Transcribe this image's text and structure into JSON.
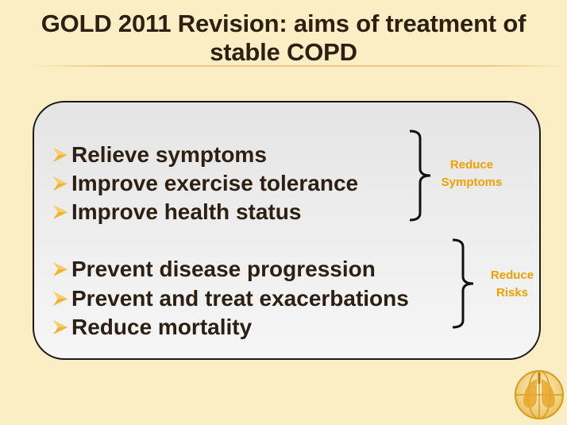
{
  "slide": {
    "title_line1": "GOLD 2011 Revision: aims of treatment of",
    "title_line2": "stable COPD"
  },
  "groups": [
    {
      "label_line1": "Reduce",
      "label_line2": "Symptoms",
      "items": [
        "Relieve symptoms",
        "Improve exercise tolerance",
        "Improve health status"
      ]
    },
    {
      "label_line1": "Reduce",
      "label_line2": "Risks",
      "items": [
        "Prevent disease progression",
        "Prevent and treat exacerbations",
        "Reduce mortality"
      ]
    }
  ],
  "icons": {
    "bullet": "arrow-bullet-icon",
    "logo": "gold-logo-icon"
  },
  "colors": {
    "background": "#fbeec4",
    "text": "#2d2013",
    "accent": "#f0a000"
  }
}
